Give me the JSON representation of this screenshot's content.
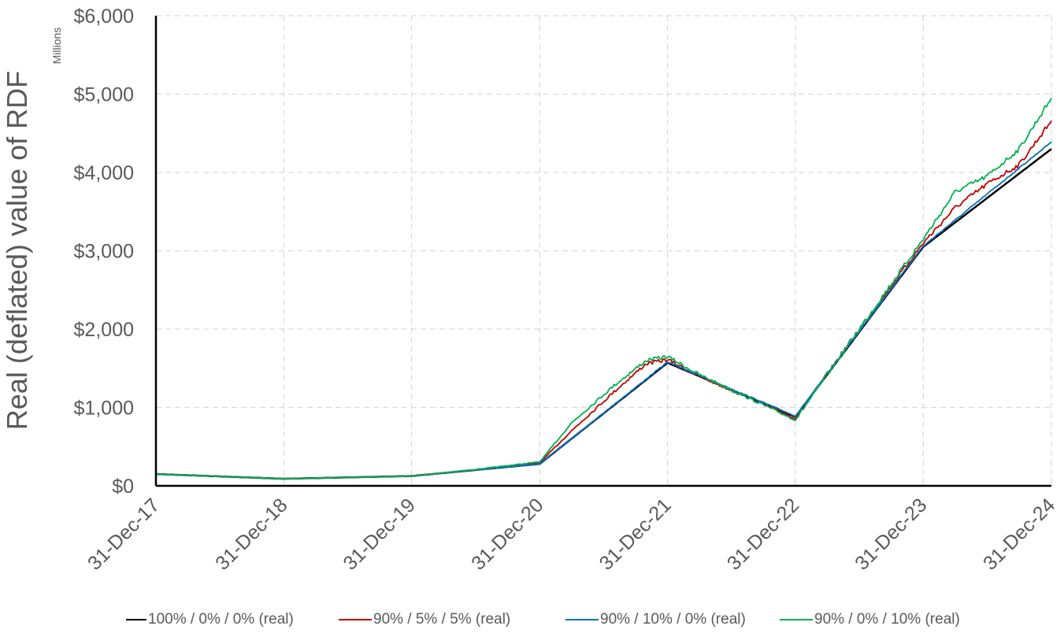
{
  "chart_data": {
    "type": "line",
    "title": "",
    "ylabel": "Real (deflated) value of RDF",
    "y_unit_label": "Millions",
    "ylim": [
      0,
      6000
    ],
    "y_ticks": [
      0,
      1000,
      2000,
      3000,
      4000,
      5000,
      6000
    ],
    "y_tick_labels": [
      "$0",
      "$1,000",
      "$2,000",
      "$3,000",
      "$4,000",
      "$5,000",
      "$6,000"
    ],
    "x_tick_labels": [
      "31-Dec-17",
      "31-Dec-18",
      "31-Dec-19",
      "31-Dec-20",
      "31-Dec-21",
      "31-Dec-22",
      "31-Dec-23",
      "31-Dec-24"
    ],
    "grid": true,
    "legend_position": "bottom",
    "series": [
      {
        "name": "100% / 0% / 0% (real)",
        "color": "#000000",
        "points": [
          [
            "31-Dec-17",
            150
          ],
          [
            "31-Dec-18",
            90
          ],
          [
            "31-Dec-19",
            125
          ],
          [
            "31-Dec-20",
            280
          ],
          [
            "31-Dec-21",
            1570
          ],
          [
            "31-Dec-22",
            880
          ],
          [
            "31-Dec-23",
            3050
          ],
          [
            "31-Dec-24",
            4300
          ]
        ]
      },
      {
        "name": "90% / 5% / 5% (real)",
        "color": "#C00000",
        "points": [
          [
            "31-Dec-17",
            150
          ],
          [
            "31-Dec-18",
            90
          ],
          [
            "31-Dec-19",
            125
          ],
          [
            "31-Jun-20",
            200
          ],
          [
            "31-Dec-20",
            295
          ],
          [
            "31-Mar-21",
            700
          ],
          [
            "31-Jul-21",
            1200
          ],
          [
            "31-Oct-21",
            1560
          ],
          [
            "31-Dec-21",
            1610
          ],
          [
            "31-Mar-22",
            1400
          ],
          [
            "31-Dec-22",
            860
          ],
          [
            "31-Jun-23",
            2000
          ],
          [
            "31-Dec-23",
            3100
          ],
          [
            "31-Mar-24",
            3550
          ],
          [
            "30-Jun-24",
            3850
          ],
          [
            "30-Sep-24",
            4100
          ],
          [
            "31-Dec-24",
            4660
          ]
        ]
      },
      {
        "name": "90% / 10% / 0% (real)",
        "color": "#0070C0",
        "points": [
          [
            "31-Dec-17",
            150
          ],
          [
            "31-Dec-18",
            90
          ],
          [
            "31-Dec-19",
            125
          ],
          [
            "31-Dec-20",
            280
          ],
          [
            "31-Dec-21",
            1580
          ],
          [
            "31-Dec-22",
            890
          ],
          [
            "31-Dec-23",
            3060
          ],
          [
            "31-Dec-24",
            4390
          ]
        ]
      },
      {
        "name": "90% / 0% / 10% (real)",
        "color": "#00B050",
        "points": [
          [
            "31-Dec-17",
            150
          ],
          [
            "31-Dec-18",
            90
          ],
          [
            "31-Dec-19",
            125
          ],
          [
            "31-Jun-20",
            210
          ],
          [
            "31-Dec-20",
            305
          ],
          [
            "31-Mar-21",
            800
          ],
          [
            "31-Jul-21",
            1280
          ],
          [
            "31-Oct-21",
            1600
          ],
          [
            "31-Dec-21",
            1650
          ],
          [
            "31-Mar-22",
            1420
          ],
          [
            "31-Dec-22",
            840
          ],
          [
            "31-Jun-23",
            2000
          ],
          [
            "31-Dec-23",
            3150
          ],
          [
            "31-Mar-24",
            3750
          ],
          [
            "30-Jun-24",
            3950
          ],
          [
            "30-Sep-24",
            4300
          ],
          [
            "31-Dec-24",
            4950
          ]
        ]
      }
    ]
  }
}
